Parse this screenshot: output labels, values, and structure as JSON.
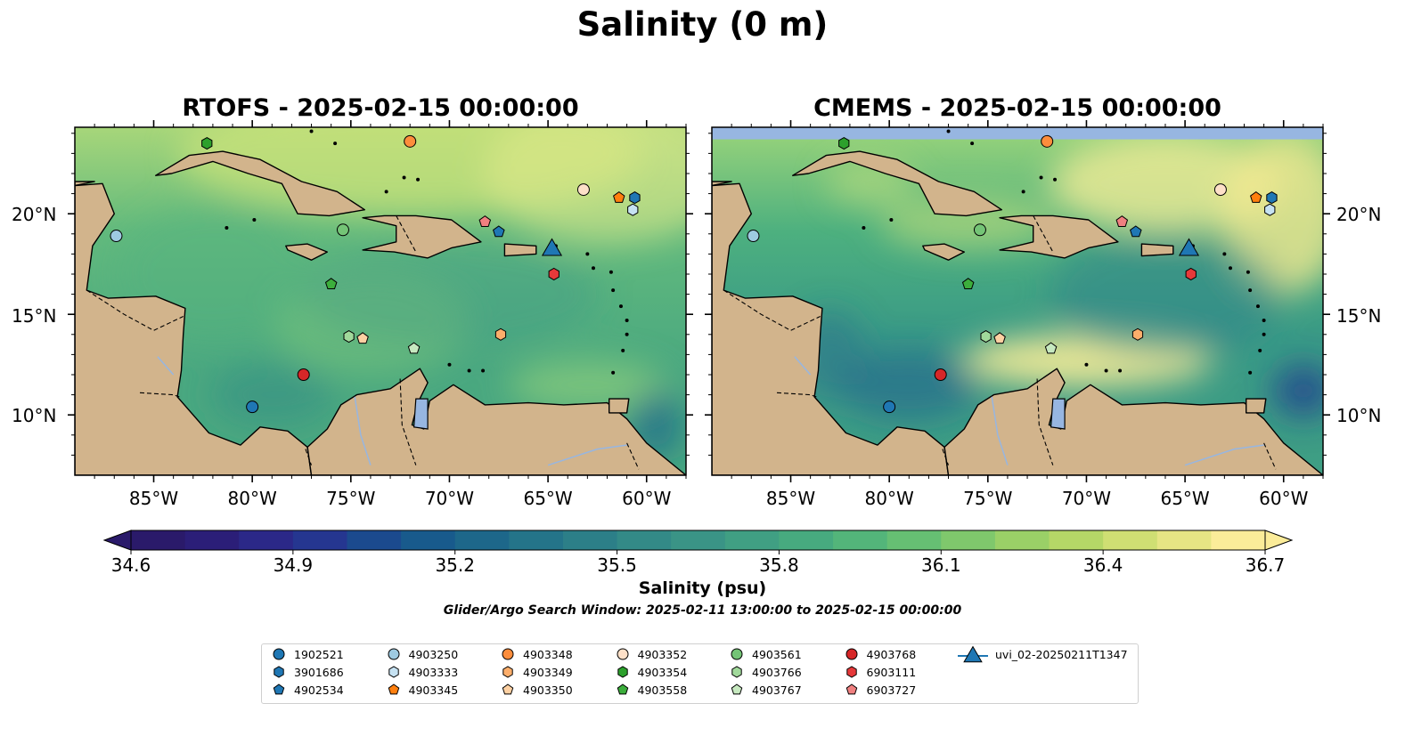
{
  "figure": {
    "title": "Salinity (0 m)",
    "caption": "Glider/Argo Search Window: 2025-02-11 13:00:00 to 2025-02-15 00:00:00"
  },
  "panels": [
    {
      "title": "RTOFS - 2025-02-15 00:00:00",
      "variant": "rtofs"
    },
    {
      "title": "CMEMS - 2025-02-15 00:00:00",
      "variant": "cmems"
    }
  ],
  "axes": {
    "lon_ticks": [
      "85°W",
      "80°W",
      "75°W",
      "70°W",
      "65°W",
      "60°W"
    ],
    "lat_ticks": [
      "20°N",
      "15°N",
      "10°N"
    ],
    "lon_values": [
      -85,
      -80,
      -75,
      -70,
      -65,
      -60
    ],
    "lat_values": [
      20,
      15,
      10
    ],
    "extent": {
      "lon_min": -89,
      "lon_max": -58,
      "lat_min": 7,
      "lat_max": 24.3
    }
  },
  "colorbar": {
    "label": "Salinity (psu)",
    "ticks": [
      "34.6",
      "34.9",
      "35.2",
      "35.5",
      "35.8",
      "36.1",
      "36.4",
      "36.7"
    ],
    "min": 34.6,
    "max": 36.7,
    "extend": "both",
    "colormap": "haline"
  },
  "colors": {
    "land": "#d2b48c",
    "water_feature": "#97b6e1",
    "low": "#2a1a6a",
    "mid": "#3fa37f",
    "high": "#fdef9a"
  },
  "markers": [
    {
      "id": "1902521",
      "shape": "circle",
      "color": "#1f77b4",
      "lon": -80.0,
      "lat": 10.4
    },
    {
      "id": "3901686",
      "shape": "hexagon",
      "color": "#1f77b4",
      "lon": -60.6,
      "lat": 20.8
    },
    {
      "id": "4902534",
      "shape": "pentagon",
      "color": "#1f77b4",
      "lon": -67.5,
      "lat": 19.1
    },
    {
      "id": "4903250",
      "shape": "circle",
      "color": "#9ecae1",
      "lon": -86.9,
      "lat": 18.9
    },
    {
      "id": "4903333",
      "shape": "hexagon",
      "color": "#c6e2f2",
      "lon": -60.7,
      "lat": 20.2
    },
    {
      "id": "4903345",
      "shape": "pentagon",
      "color": "#ff7f0e",
      "lon": -61.4,
      "lat": 20.8
    },
    {
      "id": "4903348",
      "shape": "circle",
      "color": "#fd8d3c",
      "lon": -72.0,
      "lat": 23.6
    },
    {
      "id": "4903349",
      "shape": "hexagon",
      "color": "#fdae6b",
      "lon": -67.4,
      "lat": 14.0
    },
    {
      "id": "4903350",
      "shape": "pentagon",
      "color": "#fdd0a2",
      "lon": -74.4,
      "lat": 13.8
    },
    {
      "id": "4903352",
      "shape": "circle",
      "color": "#fde0c8",
      "lon": -63.2,
      "lat": 21.2
    },
    {
      "id": "4903354",
      "shape": "hexagon",
      "color": "#2ca02c",
      "lon": -82.3,
      "lat": 23.5
    },
    {
      "id": "4903558",
      "shape": "pentagon",
      "color": "#3cae3c",
      "lon": -76.0,
      "lat": 16.5
    },
    {
      "id": "4903561",
      "shape": "circle",
      "color": "#74c476",
      "lon": -75.4,
      "lat": 19.2
    },
    {
      "id": "4903766",
      "shape": "hexagon",
      "color": "#a1d99b",
      "lon": -75.1,
      "lat": 13.9
    },
    {
      "id": "4903767",
      "shape": "pentagon",
      "color": "#c7e9c0",
      "lon": -71.8,
      "lat": 13.3
    },
    {
      "id": "4903768",
      "shape": "circle",
      "color": "#d62728",
      "lon": -77.4,
      "lat": 12.0
    },
    {
      "id": "6903111",
      "shape": "hexagon",
      "color": "#e6393a",
      "lon": -64.7,
      "lat": 17.0
    },
    {
      "id": "6903727",
      "shape": "pentagon",
      "color": "#f08080",
      "lon": -68.2,
      "lat": 19.6
    },
    {
      "id": "uvi_02-20250211T1347",
      "shape": "triangle",
      "color": "#1f77b4",
      "lon": -64.8,
      "lat": 18.2
    }
  ]
}
